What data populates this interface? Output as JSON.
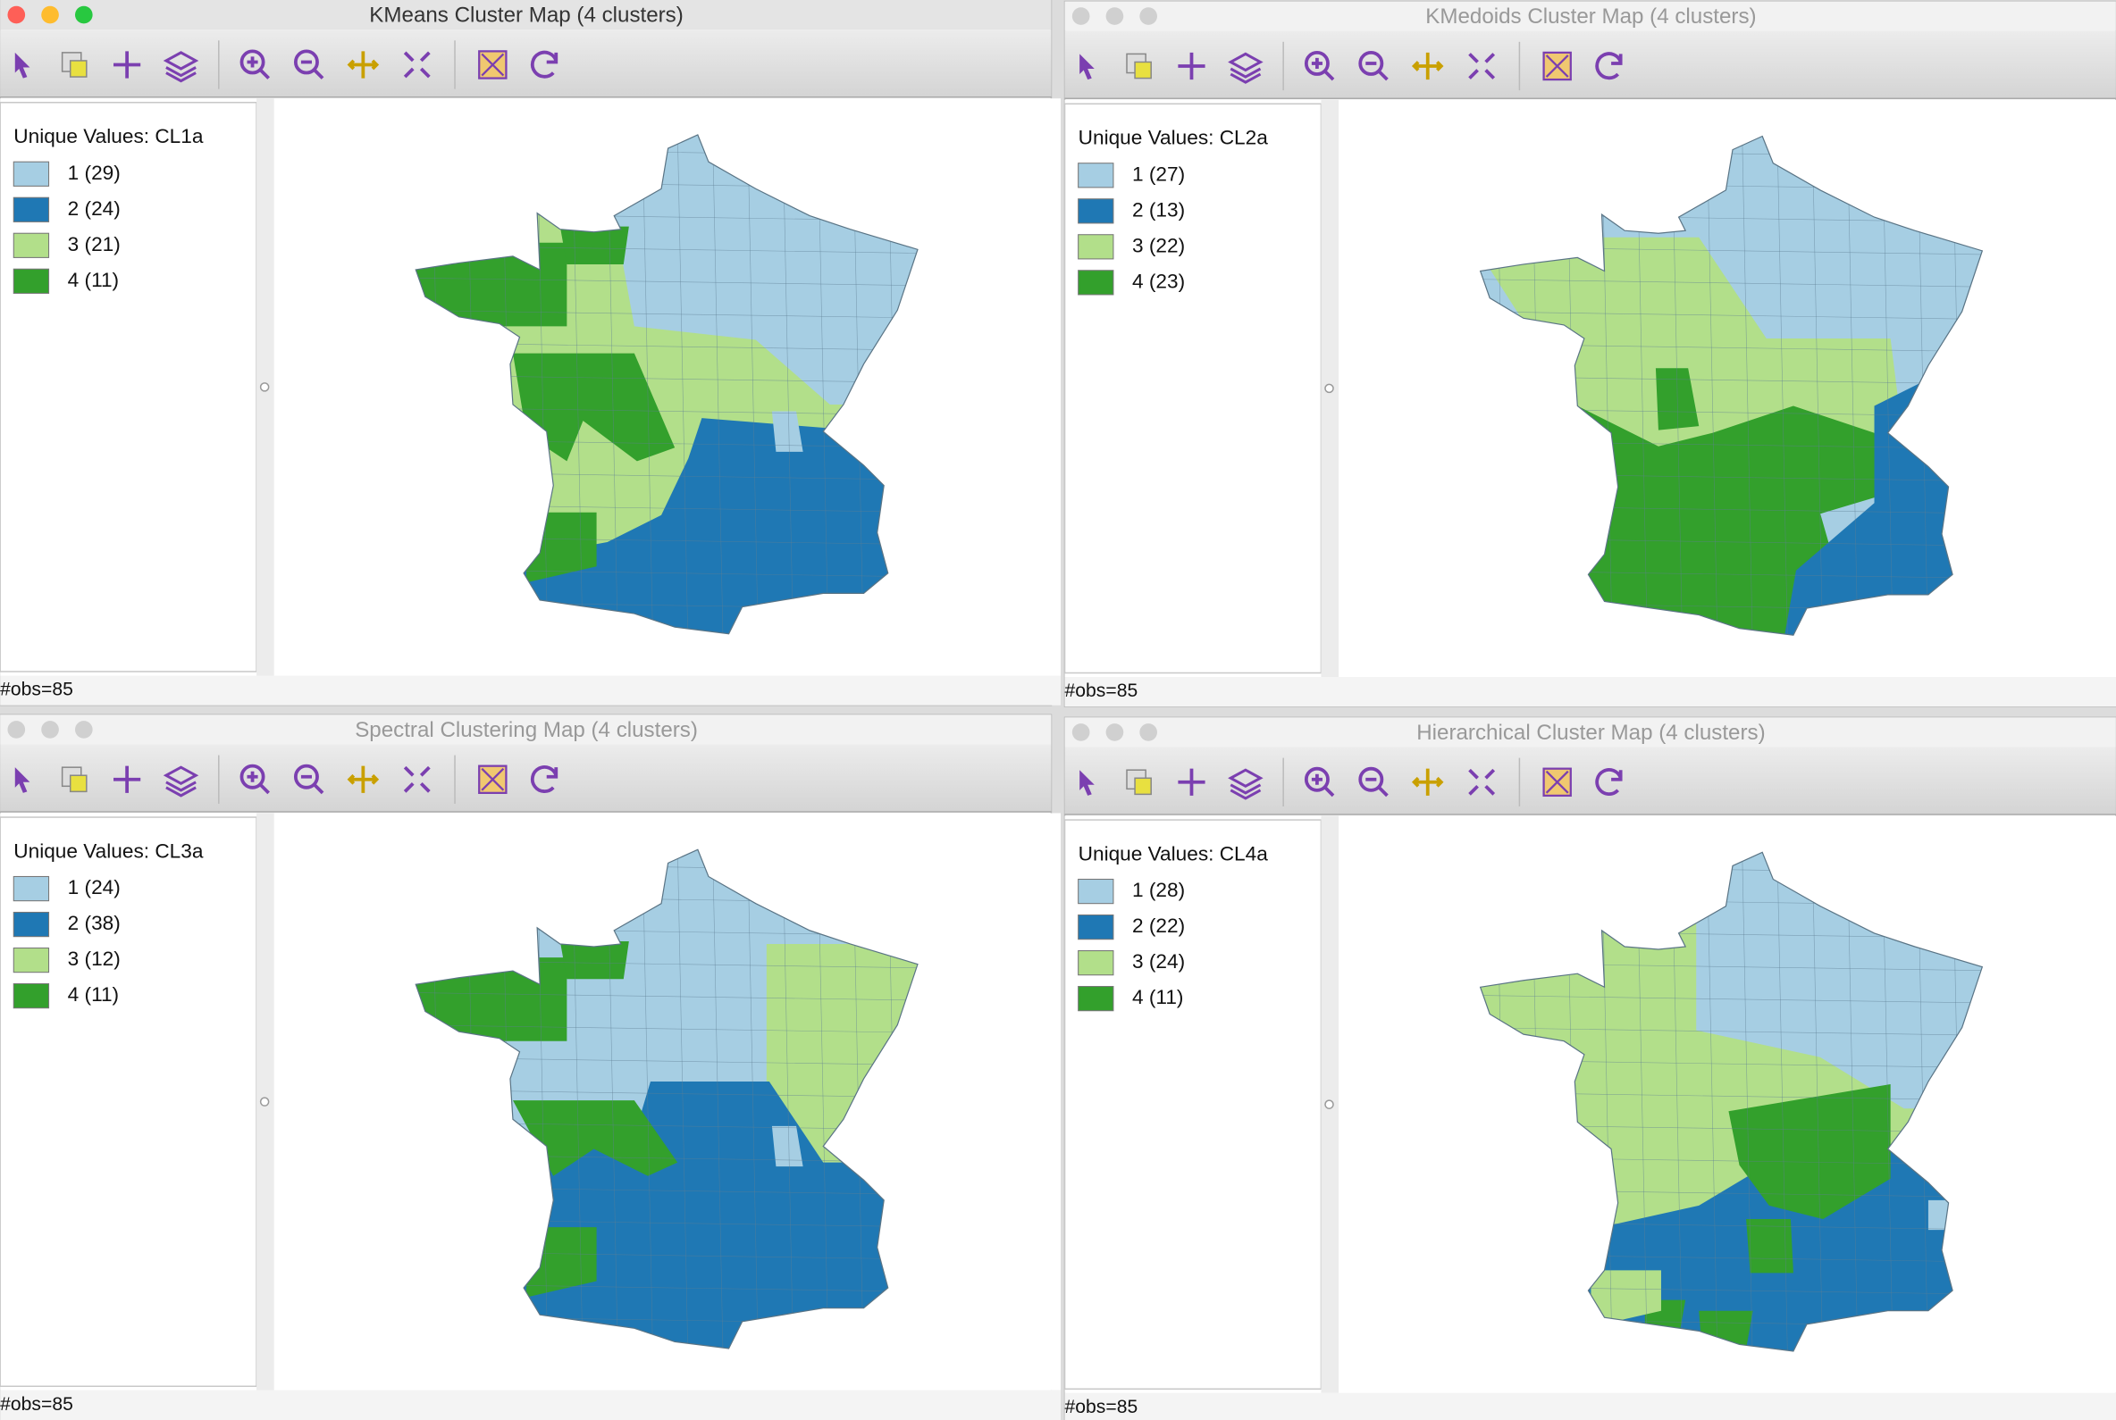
{
  "windows": [
    {
      "title": "KMeans Cluster Map (4 clusters)",
      "legend_title": "Unique Values: CL1a",
      "legend": [
        "1 (29)",
        "2 (24)",
        "3 (21)",
        "4 (11)"
      ],
      "status": "#obs=85"
    },
    {
      "title": "KMedoids Cluster Map (4 clusters)",
      "legend_title": "Unique Values: CL2a",
      "legend": [
        "1 (27)",
        "2 (13)",
        "3 (22)",
        "4 (23)"
      ],
      "status": "#obs=85"
    },
    {
      "title": "Spectral Clustering Map (4 clusters)",
      "legend_title": "Unique Values: CL3a",
      "legend": [
        "1 (24)",
        "2 (38)",
        "3 (12)",
        "4 (11)"
      ],
      "status": "#obs=85"
    },
    {
      "title": "Hierarchical Cluster Map (4 clusters)",
      "legend_title": "Unique Values: CL4a",
      "legend": [
        "1 (28)",
        "2 (22)",
        "3 (24)",
        "4 (11)"
      ],
      "status": "#obs=85"
    }
  ]
}
